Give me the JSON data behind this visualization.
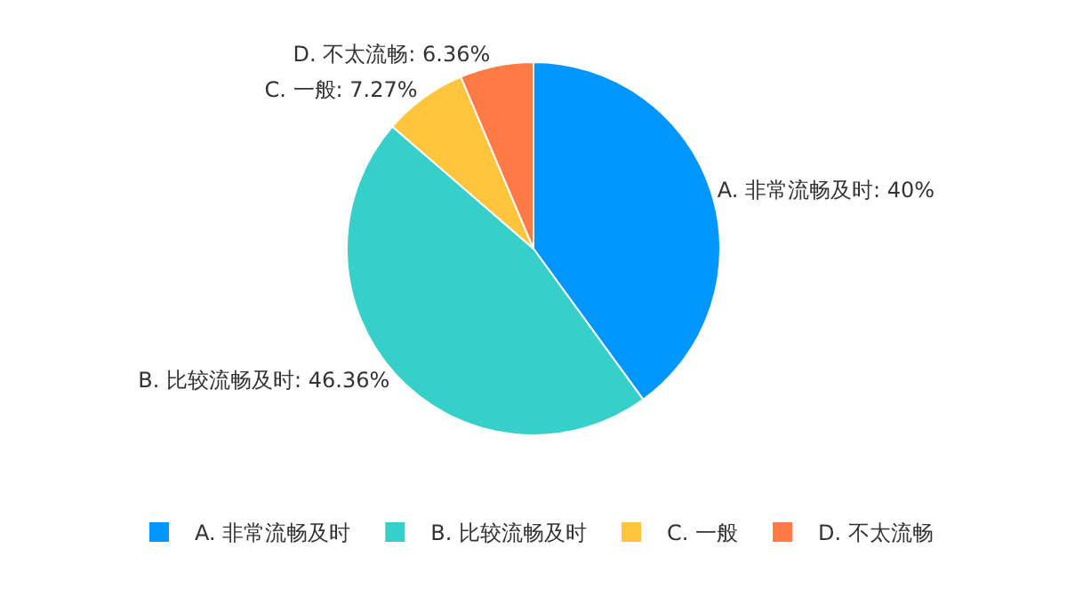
{
  "chart_data": {
    "type": "pie",
    "categories": [
      "A. 非常流畅及时",
      "B. 比较流畅及时",
      "C. 一般",
      "D. 不太流畅"
    ],
    "values": [
      40,
      46.36,
      7.27,
      6.36
    ],
    "value_labels": [
      "A. 非常流畅及时: 40%",
      "B. 比较流畅及时: 46.36%",
      "C. 一般: 7.27%",
      "D. 不太流畅: 6.36%"
    ],
    "colors": [
      "#0096ff",
      "#36cfc9",
      "#ffc53d",
      "#ff7a45"
    ],
    "legend": "bottom"
  }
}
